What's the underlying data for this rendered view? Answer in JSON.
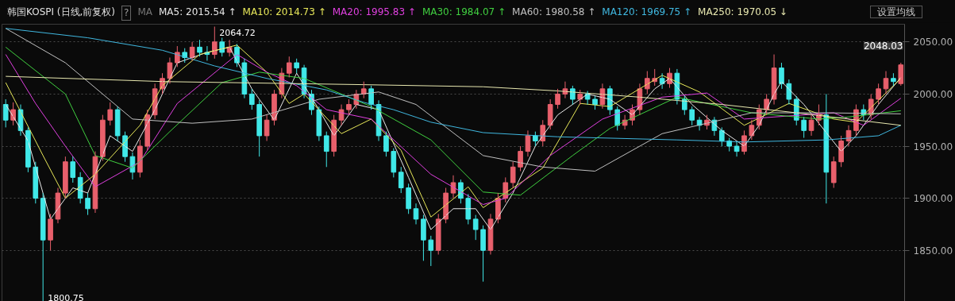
{
  "chart_data": {
    "type": "candlestick",
    "title": "韩国KOSPI (日线,前复权)",
    "categories": [
      null,
      null,
      null,
      null,
      null,
      null,
      null,
      null,
      null,
      null,
      null,
      null,
      null,
      null,
      null,
      null,
      null,
      null,
      null,
      null,
      null,
      null,
      null,
      null,
      null,
      null,
      null,
      null,
      null,
      null,
      null,
      null,
      null,
      null,
      null,
      null,
      null,
      null,
      null,
      null,
      null,
      null,
      null,
      null,
      null,
      null,
      null,
      null,
      null,
      null,
      null,
      null,
      null,
      null,
      null,
      null,
      null,
      null,
      null,
      null,
      null,
      null,
      null,
      null,
      null,
      null,
      null,
      null,
      null,
      null,
      null,
      null,
      null,
      null,
      null,
      null,
      null,
      null,
      null,
      null,
      null,
      null,
      null,
      null,
      null,
      null,
      null,
      null,
      null,
      null,
      null,
      null,
      null,
      null,
      null,
      null,
      null,
      null,
      null,
      null,
      null,
      null,
      null,
      null,
      null,
      null,
      null,
      null,
      null,
      null,
      null,
      null,
      null,
      null,
      null,
      null,
      null,
      null,
      null,
      null,
      null
    ],
    "ylim": [
      1798,
      2067
    ],
    "yticks": [
      {
        "value": 1850,
        "label": "1850.00"
      },
      {
        "value": 1900,
        "label": "1900.00"
      },
      {
        "value": 1950,
        "label": "1950.00"
      },
      {
        "value": 2000,
        "label": "2000.00"
      },
      {
        "value": 2050,
        "label": "2050.00"
      }
    ],
    "grid": "y",
    "tick_labels": "y",
    "legend": "top left",
    "annotations": [
      "?",
      "MA",
      "设置均线",
      "2064.72",
      "1800.75",
      "2048.03"
    ],
    "series": [
      {
        "type": "candlestick",
        "ohlc": [
          [
            1990,
            1995,
            1968,
            1975
          ],
          [
            1975,
            1992,
            1970,
            1985
          ],
          [
            1985,
            1990,
            1960,
            1965
          ],
          [
            1965,
            1968,
            1925,
            1930
          ],
          [
            1930,
            1935,
            1895,
            1900
          ],
          [
            1900,
            1905,
            1800.75,
            1860
          ],
          [
            1860,
            1885,
            1850,
            1880
          ],
          [
            1880,
            1910,
            1876,
            1905
          ],
          [
            1905,
            1940,
            1900,
            1935
          ],
          [
            1935,
            1940,
            1915,
            1920
          ],
          [
            1920,
            1925,
            1895,
            1900
          ],
          [
            1900,
            1905,
            1884,
            1890
          ],
          [
            1890,
            1945,
            1886,
            1940
          ],
          [
            1940,
            1980,
            1936,
            1975
          ],
          [
            1975,
            1992,
            1970,
            1985
          ],
          [
            1985,
            1988,
            1955,
            1960
          ],
          [
            1960,
            1964,
            1935,
            1940
          ],
          [
            1940,
            1944,
            1918,
            1925
          ],
          [
            1925,
            1956,
            1920,
            1950
          ],
          [
            1950,
            1985,
            1946,
            1980
          ],
          [
            1980,
            2010,
            1976,
            2005
          ],
          [
            2005,
            2020,
            2000,
            2015
          ],
          [
            2015,
            2035,
            2010,
            2030
          ],
          [
            2030,
            2046,
            2026,
            2040
          ],
          [
            2040,
            2044,
            2030,
            2035
          ],
          [
            2035,
            2050,
            2032,
            2045
          ],
          [
            2045,
            2052,
            2036,
            2040
          ],
          [
            2040,
            2046,
            2032,
            2038
          ],
          [
            2038,
            2064.72,
            2034,
            2050
          ],
          [
            2050,
            2054,
            2036,
            2040
          ],
          [
            2040,
            2052,
            2036,
            2045
          ],
          [
            2045,
            2048,
            2026,
            2030
          ],
          [
            2030,
            2034,
            1996,
            2000
          ],
          [
            2000,
            2005,
            1985,
            1990
          ],
          [
            1990,
            1994,
            1940,
            1960
          ],
          [
            1960,
            1980,
            1955,
            1975
          ],
          [
            1975,
            2004,
            1970,
            2000
          ],
          [
            2000,
            2025,
            1996,
            2020
          ],
          [
            2020,
            2036,
            2016,
            2030
          ],
          [
            2030,
            2034,
            2020,
            2025
          ],
          [
            2025,
            2028,
            1996,
            2000
          ],
          [
            2000,
            2004,
            1980,
            1985
          ],
          [
            1985,
            1988,
            1955,
            1960
          ],
          [
            1960,
            1964,
            1930,
            1945
          ],
          [
            1945,
            1980,
            1940,
            1975
          ],
          [
            1975,
            1990,
            1970,
            1985
          ],
          [
            1985,
            1995,
            1980,
            1990
          ],
          [
            1990,
            2004,
            1986,
            2000
          ],
          [
            2000,
            2012,
            1996,
            2005
          ],
          [
            2005,
            2008,
            1985,
            1990
          ],
          [
            1990,
            1994,
            1955,
            1960
          ],
          [
            1960,
            1964,
            1940,
            1945
          ],
          [
            1945,
            1948,
            1920,
            1925
          ],
          [
            1925,
            1930,
            1905,
            1910
          ],
          [
            1910,
            1914,
            1885,
            1890
          ],
          [
            1890,
            1895,
            1875,
            1880
          ],
          [
            1880,
            1884,
            1840,
            1860
          ],
          [
            1860,
            1864,
            1835,
            1850
          ],
          [
            1850,
            1885,
            1846,
            1880
          ],
          [
            1880,
            1910,
            1876,
            1905
          ],
          [
            1905,
            1922,
            1900,
            1915
          ],
          [
            1915,
            1918,
            1895,
            1900
          ],
          [
            1900,
            1904,
            1875,
            1880
          ],
          [
            1880,
            1884,
            1860,
            1870
          ],
          [
            1870,
            1874,
            1820,
            1850
          ],
          [
            1850,
            1885,
            1846,
            1880
          ],
          [
            1880,
            1905,
            1876,
            1900
          ],
          [
            1900,
            1920,
            1896,
            1915
          ],
          [
            1915,
            1935,
            1910,
            1930
          ],
          [
            1930,
            1950,
            1926,
            1945
          ],
          [
            1945,
            1965,
            1940,
            1960
          ],
          [
            1960,
            1964,
            1950,
            1955
          ],
          [
            1955,
            1975,
            1950,
            1970
          ],
          [
            1970,
            1995,
            1966,
            1990
          ],
          [
            1990,
            2005,
            1986,
            2000
          ],
          [
            2000,
            2012,
            1996,
            2005
          ],
          [
            2005,
            2008,
            1990,
            1995
          ],
          [
            1995,
            2004,
            1990,
            2000
          ],
          [
            2000,
            2003,
            1990,
            1995
          ],
          [
            1995,
            1998,
            1985,
            1990
          ],
          [
            1990,
            2010,
            1986,
            2005
          ],
          [
            2005,
            2008,
            1980,
            1985
          ],
          [
            1985,
            1988,
            1965,
            1970
          ],
          [
            1970,
            1980,
            1966,
            1975
          ],
          [
            1975,
            1990,
            1970,
            1985
          ],
          [
            1985,
            2010,
            1980,
            2005
          ],
          [
            2005,
            2022,
            2000,
            2015
          ],
          [
            2012,
            2024,
            2008,
            2015
          ],
          [
            2015,
            2020,
            2005,
            2010
          ],
          [
            2010,
            2025,
            2006,
            2020
          ],
          [
            2020,
            2024,
            1990,
            1995
          ],
          [
            1995,
            1998,
            1980,
            1985
          ],
          [
            1985,
            1988,
            1970,
            1975
          ],
          [
            1975,
            1978,
            1965,
            1970
          ],
          [
            1970,
            1980,
            1966,
            1975
          ],
          [
            1975,
            1978,
            1960,
            1965
          ],
          [
            1965,
            1968,
            1950,
            1955
          ],
          [
            1955,
            1958,
            1945,
            1950
          ],
          [
            1950,
            1954,
            1940,
            1945
          ],
          [
            1945,
            1965,
            1942,
            1960
          ],
          [
            1960,
            1975,
            1956,
            1970
          ],
          [
            1970,
            1990,
            1966,
            1985
          ],
          [
            1985,
            2000,
            1980,
            1995
          ],
          [
            1995,
            2038,
            1990,
            2025
          ],
          [
            2025,
            2030,
            2005,
            2010
          ],
          [
            2010,
            2014,
            1990,
            1995
          ],
          [
            1995,
            1998,
            1970,
            1975
          ],
          [
            1975,
            1978,
            1958,
            1965
          ],
          [
            1965,
            1980,
            1960,
            1975
          ],
          [
            1975,
            1990,
            1970,
            1980
          ],
          [
            1980,
            2000,
            1895,
            1925
          ],
          [
            1915,
            1940,
            1910,
            1935
          ],
          [
            1935,
            1960,
            1930,
            1955
          ],
          [
            1955,
            1970,
            1950,
            1965
          ],
          [
            1965,
            1990,
            1960,
            1985
          ],
          [
            1985,
            1990,
            1975,
            1980
          ],
          [
            1980,
            2000,
            1976,
            1995
          ],
          [
            1995,
            2010,
            1990,
            2005
          ],
          [
            2005,
            2022,
            2000,
            2015
          ],
          [
            2015,
            2020,
            2008,
            2012
          ],
          [
            2010,
            2030,
            2008,
            2028
          ]
        ],
        "colors": [
          "#40e8e8",
          "#e8606c",
          "#40e8e8",
          "#40e8e8",
          "#40e8e8",
          "#40e8e8",
          "#e8606c",
          "#e8606c",
          "#e8606c",
          "#40e8e8",
          "#40e8e8",
          "#40e8e8",
          "#e8606c",
          "#e8606c",
          "#e8606c",
          "#40e8e8",
          "#40e8e8",
          "#40e8e8",
          "#e8606c",
          "#e8606c",
          "#e8606c",
          "#e8606c",
          "#e8606c",
          "#e8606c",
          "#40e8e8",
          "#e8606c",
          "#40e8e8",
          "#40e8e8",
          "#e8606c",
          "#40e8e8",
          "#e8606c",
          "#40e8e8",
          "#40e8e8",
          "#40e8e8",
          "#40e8e8",
          "#e8606c",
          "#e8606c",
          "#e8606c",
          "#e8606c",
          "#40e8e8",
          "#40e8e8",
          "#40e8e8",
          "#40e8e8",
          "#40e8e8",
          "#e8606c",
          "#e8606c",
          "#e8606c",
          "#e8606c",
          "#e8606c",
          "#40e8e8",
          "#40e8e8",
          "#40e8e8",
          "#40e8e8",
          "#40e8e8",
          "#40e8e8",
          "#40e8e8",
          "#40e8e8",
          "#40e8e8",
          "#e8606c",
          "#e8606c",
          "#e8606c",
          "#40e8e8",
          "#40e8e8",
          "#40e8e8",
          "#40e8e8",
          "#e8606c",
          "#e8606c",
          "#e8606c",
          "#e8606c",
          "#e8606c",
          "#e8606c",
          "#40e8e8",
          "#e8606c",
          "#e8606c",
          "#e8606c",
          "#e8606c",
          "#40e8e8",
          "#e8606c",
          "#40e8e8",
          "#40e8e8",
          "#e8606c",
          "#40e8e8",
          "#40e8e8",
          "#e8606c",
          "#e8606c",
          "#e8606c",
          "#e8606c",
          "#e8606c",
          "#40e8e8",
          "#e8606c",
          "#40e8e8",
          "#40e8e8",
          "#40e8e8",
          "#40e8e8",
          "#e8606c",
          "#40e8e8",
          "#40e8e8",
          "#40e8e8",
          "#40e8e8",
          "#e8606c",
          "#e8606c",
          "#e8606c",
          "#e8606c",
          "#e8606c",
          "#40e8e8",
          "#40e8e8",
          "#40e8e8",
          "#40e8e8",
          "#e8606c",
          "#e8606c",
          "#40e8e8",
          "#e8606c",
          "#e8606c",
          "#e8606c",
          "#e8606c",
          "#40e8e8",
          "#e8606c",
          "#e8606c",
          "#e8606c",
          "#40e8e8",
          "#e8606c"
        ]
      },
      {
        "type": "line",
        "name": "MA5: 2015.54 ↑",
        "color": "#e8e8e8",
        "values": [
          1990,
          null,
          null,
          1955,
          null,
          null,
          1880,
          null,
          null,
          1910,
          null,
          1905,
          null,
          null,
          1960,
          null,
          null,
          1945,
          null,
          null,
          1985,
          null,
          null,
          2030,
          null,
          null,
          null,
          2040,
          null,
          null,
          2045,
          null,
          null,
          2005,
          null,
          null,
          1975,
          null,
          null,
          2020,
          null,
          null,
          1985,
          null,
          1960,
          null,
          null,
          1990,
          null,
          null,
          1985,
          null,
          null,
          null,
          1920,
          null,
          null,
          1870,
          null,
          null,
          1890,
          null,
          null,
          1890,
          null,
          1870,
          null,
          null,
          1905,
          null,
          null,
          1950,
          null,
          null,
          1980,
          null,
          null,
          null,
          2000,
          null,
          null,
          1995,
          null,
          null,
          1980,
          null,
          null,
          2005,
          null,
          2015,
          null,
          null,
          1990,
          null,
          null,
          null,
          1965,
          null,
          null,
          1950,
          null,
          1970,
          null,
          2000,
          2012,
          null,
          null,
          1990,
          null,
          1972,
          null,
          null,
          1945,
          null,
          1960,
          null,
          null,
          1990,
          null,
          null,
          2016
        ]
      },
      {
        "type": "line",
        "name": "MA10: 2014.73 ↑",
        "color": "#e8e85a",
        "values": [
          2011,
          null,
          null,
          null,
          null,
          1941,
          null,
          null,
          1900,
          null,
          null,
          null,
          1923,
          null,
          null,
          null,
          null,
          null,
          1970,
          null,
          null,
          2008,
          null,
          null,
          null,
          null,
          2038,
          null,
          null,
          null,
          null,
          2047,
          null,
          null,
          null,
          2021,
          null,
          null,
          1991,
          null,
          2000,
          null,
          null,
          null,
          null,
          1962,
          null,
          null,
          null,
          1976,
          null,
          null,
          null,
          1946,
          null,
          null,
          null,
          1882,
          null,
          null,
          null,
          null,
          1911,
          null,
          1891,
          null,
          null,
          null,
          null,
          null,
          null,
          null,
          1929,
          null,
          null,
          null,
          null,
          1991,
          null,
          null,
          null,
          1988,
          null,
          null,
          null,
          null,
          null,
          null,
          2018,
          null,
          null,
          null,
          null,
          2002,
          null,
          null,
          null,
          null,
          null,
          1970,
          null,
          null,
          null,
          null,
          null,
          1991,
          null,
          null,
          null,
          null,
          null,
          1976,
          null,
          null,
          1973,
          null,
          null,
          null,
          null,
          null,
          2015
        ]
      },
      {
        "type": "line",
        "name": "MA20: 1995.83 ↑",
        "color": "#e040e0",
        "values": [
          2038,
          null,
          null,
          null,
          1991,
          null,
          null,
          null,
          1950,
          null,
          null,
          null,
          1911,
          null,
          null,
          null,
          null,
          null,
          1935,
          null,
          null,
          null,
          null,
          1991,
          null,
          null,
          null,
          null,
          null,
          null,
          null,
          2038,
          null,
          null,
          null,
          2021,
          null,
          null,
          null,
          2008,
          null,
          null,
          null,
          1985,
          null,
          null,
          null,
          null,
          null,
          1976,
          null,
          null,
          null,
          null,
          null,
          null,
          null,
          1923,
          null,
          null,
          null,
          null,
          null,
          null,
          1894,
          null,
          null,
          1900,
          null,
          null,
          null,
          null,
          null,
          1941,
          null,
          null,
          null,
          null,
          null,
          null,
          1976,
          null,
          null,
          null,
          null,
          null,
          null,
          null,
          1997,
          null,
          null,
          null,
          null,
          null,
          2001,
          null,
          null,
          null,
          null,
          1976,
          null,
          null,
          null,
          null,
          null,
          1979,
          null,
          null,
          null,
          null,
          null,
          1982,
          null,
          null,
          null,
          1970,
          null,
          null,
          null,
          null,
          1996
        ]
      },
      {
        "type": "line",
        "name": "MA30: 1984.07 ↑",
        "color": "#40d040",
        "values": [
          2045,
          null,
          null,
          null,
          null,
          null,
          null,
          null,
          2000,
          null,
          null,
          null,
          1941,
          null,
          null,
          null,
          null,
          1929,
          null,
          null,
          null,
          null,
          1964,
          null,
          null,
          null,
          null,
          null,
          null,
          2011,
          null,
          null,
          null,
          null,
          2021,
          null,
          null,
          null,
          null,
          null,
          2015,
          null,
          null,
          null,
          null,
          null,
          null,
          null,
          null,
          1988,
          null,
          null,
          null,
          null,
          null,
          null,
          null,
          1956,
          null,
          null,
          null,
          null,
          null,
          null,
          1906,
          null,
          null,
          null,
          null,
          1903,
          null,
          null,
          null,
          null,
          null,
          null,
          1941,
          null,
          null,
          null,
          null,
          1967,
          null,
          null,
          null,
          null,
          null,
          null,
          null,
          null,
          1997,
          null,
          null,
          null,
          null,
          null,
          null,
          null,
          null,
          null,
          1982,
          null,
          null,
          null,
          null,
          null,
          null,
          null,
          null,
          1976,
          null,
          null,
          null,
          1978,
          null,
          null,
          null,
          null,
          null,
          null,
          1984
        ]
      },
      {
        "type": "line",
        "name": "MA60: 1980.58 ↑",
        "color": "#c0c0c0",
        "values": [
          2063,
          null,
          null,
          null,
          null,
          null,
          null,
          null,
          2030,
          null,
          null,
          null,
          null,
          null,
          null,
          null,
          null,
          1976,
          null,
          null,
          null,
          null,
          null,
          null,
          null,
          1972,
          null,
          null,
          null,
          null,
          null,
          null,
          null,
          1976,
          null,
          null,
          null,
          null,
          null,
          null,
          null,
          null,
          1995,
          null,
          null,
          null,
          null,
          null,
          null,
          null,
          2002,
          null,
          null,
          null,
          null,
          1990,
          null,
          null,
          null,
          null,
          null,
          null,
          null,
          null,
          1941,
          null,
          null,
          null,
          null,
          null,
          null,
          null,
          1930,
          null,
          null,
          null,
          null,
          null,
          null,
          1926,
          null,
          null,
          null,
          null,
          null,
          null,
          null,
          null,
          1962,
          null,
          null,
          null,
          null,
          null,
          null,
          null,
          null,
          null,
          null,
          null,
          1982,
          null,
          null,
          null,
          null,
          null,
          null,
          null,
          null,
          null,
          1982,
          null,
          null,
          null,
          null,
          null,
          null,
          null,
          null,
          null,
          1981
        ]
      },
      {
        "type": "line",
        "name": "MA120: 1969.75 ↑",
        "color": "#40b8e0",
        "values": [
          2063,
          null,
          null,
          null,
          null,
          null,
          null,
          null,
          null,
          null,
          null,
          2054,
          null,
          null,
          null,
          null,
          null,
          null,
          null,
          null,
          null,
          2042,
          null,
          null,
          null,
          null,
          null,
          null,
          2027,
          null,
          null,
          null,
          null,
          null,
          null,
          2015,
          null,
          null,
          null,
          null,
          null,
          null,
          null,
          2004,
          null,
          null,
          null,
          null,
          1992,
          null,
          null,
          null,
          1985,
          null,
          null,
          null,
          null,
          1973,
          null,
          null,
          null,
          null,
          null,
          null,
          1963,
          null,
          null,
          null,
          null,
          null,
          null,
          null,
          null,
          null,
          1959,
          null,
          null,
          null,
          null,
          null,
          null,
          null,
          null,
          null,
          null,
          null,
          null,
          null,
          null,
          null,
          1956,
          null,
          null,
          null,
          null,
          null,
          null,
          null,
          null,
          1954,
          null,
          null,
          null,
          null,
          null,
          null,
          null,
          null,
          null,
          null,
          1956,
          null,
          null,
          null,
          null,
          null,
          null,
          1960,
          null,
          null,
          1970
        ]
      },
      {
        "type": "line",
        "name": "MA250: 1970.05 ↓",
        "color": "#e8e8b0",
        "values": [
          2017,
          null,
          null,
          null,
          null,
          null,
          null,
          null,
          null,
          null,
          null,
          null,
          null,
          null,
          null,
          null,
          null,
          null,
          null,
          null,
          null,
          2012,
          null,
          null,
          null,
          null,
          null,
          null,
          null,
          null,
          null,
          null,
          null,
          null,
          null,
          null,
          null,
          null,
          null,
          null,
          null,
          null,
          null,
          null,
          null,
          null,
          null,
          null,
          2009,
          null,
          null,
          null,
          null,
          null,
          null,
          null,
          null,
          null,
          null,
          null,
          null,
          null,
          null,
          null,
          2007,
          null,
          null,
          null,
          null,
          null,
          null,
          null,
          null,
          null,
          2003,
          null,
          null,
          null,
          null,
          null,
          null,
          null,
          null,
          null,
          null,
          1997,
          null,
          null,
          null,
          null,
          null,
          null,
          null,
          null,
          null,
          null,
          1990,
          null,
          null,
          null,
          null,
          null,
          null,
          null,
          null,
          null,
          1982,
          null,
          null,
          null,
          null,
          null,
          null,
          null,
          null,
          null,
          null,
          null,
          null,
          null,
          1970
        ]
      }
    ]
  }
}
